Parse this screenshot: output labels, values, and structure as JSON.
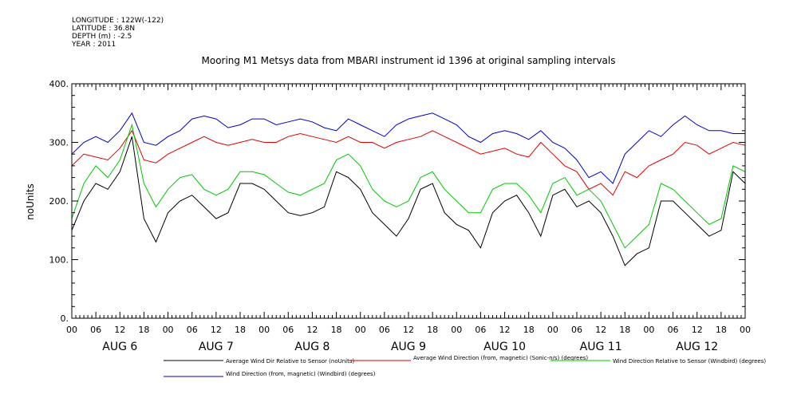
{
  "meta": {
    "longitude": "LONGITUDE : 122W(-122)",
    "latitude": "LATITUDE : 36.8N",
    "depth": "DEPTH (m) : -2.5",
    "year": "YEAR : 2011"
  },
  "chart_data": {
    "type": "line",
    "title": "Mooring M1 Metsys data from MBARI instrument id 1396 at original sampling intervals",
    "ylabel": "noUnits",
    "xlabel": "",
    "ylim": [
      0,
      400
    ],
    "yticks": [
      0,
      100,
      200,
      300,
      400
    ],
    "ytick_labels": [
      "0.",
      "100.",
      "200.",
      "300.",
      "400."
    ],
    "xlim_hours": [
      0,
      168
    ],
    "xtick_labels": [
      "00",
      "06",
      "12",
      "18",
      "00",
      "06",
      "12",
      "18",
      "00",
      "06",
      "12",
      "18",
      "00",
      "06",
      "12",
      "18",
      "00",
      "06",
      "12",
      "18",
      "00",
      "06",
      "12",
      "18",
      "00",
      "06",
      "12",
      "18",
      "00"
    ],
    "day_labels": [
      "AUG 6",
      "AUG 7",
      "AUG 8",
      "AUG 9",
      "AUG 10",
      "AUG 11",
      "AUG 12"
    ],
    "grid": false,
    "legend_position": "bottom",
    "colors": {
      "black": "#000000",
      "red": "#e00000",
      "green": "#00c800",
      "blue": "#0000c8"
    },
    "series": [
      {
        "name": "Average Wind Dir Relative to Sensor (noUnits)",
        "color": "#000000",
        "x": [
          0,
          3,
          6,
          9,
          12,
          15,
          18,
          21,
          24,
          27,
          30,
          33,
          36,
          39,
          42,
          45,
          48,
          51,
          54,
          57,
          60,
          63,
          66,
          69,
          72,
          75,
          78,
          81,
          84,
          87,
          90,
          93,
          96,
          99,
          102,
          105,
          108,
          111,
          114,
          117,
          120,
          123,
          126,
          129,
          132,
          135,
          138,
          141,
          144,
          147,
          150,
          153,
          156,
          159,
          162,
          165,
          168
        ],
        "y": [
          150,
          200,
          230,
          220,
          250,
          310,
          170,
          130,
          180,
          200,
          210,
          190,
          170,
          180,
          230,
          230,
          220,
          200,
          180,
          175,
          180,
          190,
          250,
          240,
          220,
          180,
          160,
          140,
          170,
          220,
          230,
          180,
          160,
          150,
          120,
          180,
          200,
          210,
          180,
          140,
          210,
          220,
          190,
          200,
          180,
          140,
          90,
          110,
          120,
          200,
          200,
          180,
          160,
          140,
          150,
          250,
          230
        ]
      },
      {
        "name": "Average Wind Direction (from, magnetic) (Sonic-n/s) (degrees)",
        "color": "#e00000",
        "x": [
          0,
          3,
          6,
          9,
          12,
          15,
          18,
          21,
          24,
          27,
          30,
          33,
          36,
          39,
          42,
          45,
          48,
          51,
          54,
          57,
          60,
          63,
          66,
          69,
          72,
          75,
          78,
          81,
          84,
          87,
          90,
          93,
          96,
          99,
          102,
          105,
          108,
          111,
          114,
          117,
          120,
          123,
          126,
          129,
          132,
          135,
          138,
          141,
          144,
          147,
          150,
          153,
          156,
          159,
          162,
          165,
          168
        ],
        "y": [
          260,
          280,
          275,
          270,
          290,
          320,
          270,
          265,
          280,
          290,
          300,
          310,
          300,
          295,
          300,
          305,
          300,
          300,
          310,
          315,
          310,
          305,
          300,
          310,
          300,
          300,
          290,
          300,
          305,
          310,
          320,
          310,
          300,
          290,
          280,
          285,
          290,
          280,
          275,
          300,
          280,
          260,
          250,
          220,
          230,
          210,
          250,
          240,
          260,
          270,
          280,
          300,
          295,
          280,
          290,
          300,
          295
        ]
      },
      {
        "name": "Wind Direction Relative to Sensor (Windbird) (degrees)",
        "color": "#00c800",
        "x": [
          0,
          3,
          6,
          9,
          12,
          15,
          18,
          21,
          24,
          27,
          30,
          33,
          36,
          39,
          42,
          45,
          48,
          51,
          54,
          57,
          60,
          63,
          66,
          69,
          72,
          75,
          78,
          81,
          84,
          87,
          90,
          93,
          96,
          99,
          102,
          105,
          108,
          111,
          114,
          117,
          120,
          123,
          126,
          129,
          132,
          135,
          138,
          141,
          144,
          147,
          150,
          153,
          156,
          159,
          162,
          165,
          168
        ],
        "y": [
          170,
          230,
          260,
          240,
          270,
          330,
          230,
          190,
          220,
          240,
          245,
          220,
          210,
          220,
          250,
          250,
          245,
          230,
          215,
          210,
          220,
          230,
          270,
          280,
          260,
          220,
          200,
          190,
          200,
          240,
          250,
          220,
          200,
          180,
          180,
          220,
          230,
          230,
          210,
          180,
          230,
          240,
          210,
          220,
          200,
          160,
          120,
          140,
          160,
          230,
          220,
          200,
          180,
          160,
          170,
          260,
          250
        ]
      },
      {
        "name": "Wind Direction (from, magnetic) (Windbird) (degrees)",
        "color": "#0000c8",
        "x": [
          0,
          3,
          6,
          9,
          12,
          15,
          18,
          21,
          24,
          27,
          30,
          33,
          36,
          39,
          42,
          45,
          48,
          51,
          54,
          57,
          60,
          63,
          66,
          69,
          72,
          75,
          78,
          81,
          84,
          87,
          90,
          93,
          96,
          99,
          102,
          105,
          108,
          111,
          114,
          117,
          120,
          123,
          126,
          129,
          132,
          135,
          138,
          141,
          144,
          147,
          150,
          153,
          156,
          159,
          162,
          165,
          168
        ],
        "y": [
          280,
          300,
          310,
          300,
          320,
          350,
          300,
          295,
          310,
          320,
          340,
          345,
          340,
          325,
          330,
          340,
          340,
          330,
          335,
          340,
          335,
          325,
          320,
          340,
          330,
          320,
          310,
          330,
          340,
          345,
          350,
          340,
          330,
          310,
          300,
          315,
          320,
          315,
          305,
          320,
          300,
          290,
          270,
          240,
          250,
          230,
          280,
          300,
          320,
          310,
          330,
          345,
          330,
          320,
          320,
          315,
          315
        ]
      }
    ]
  }
}
